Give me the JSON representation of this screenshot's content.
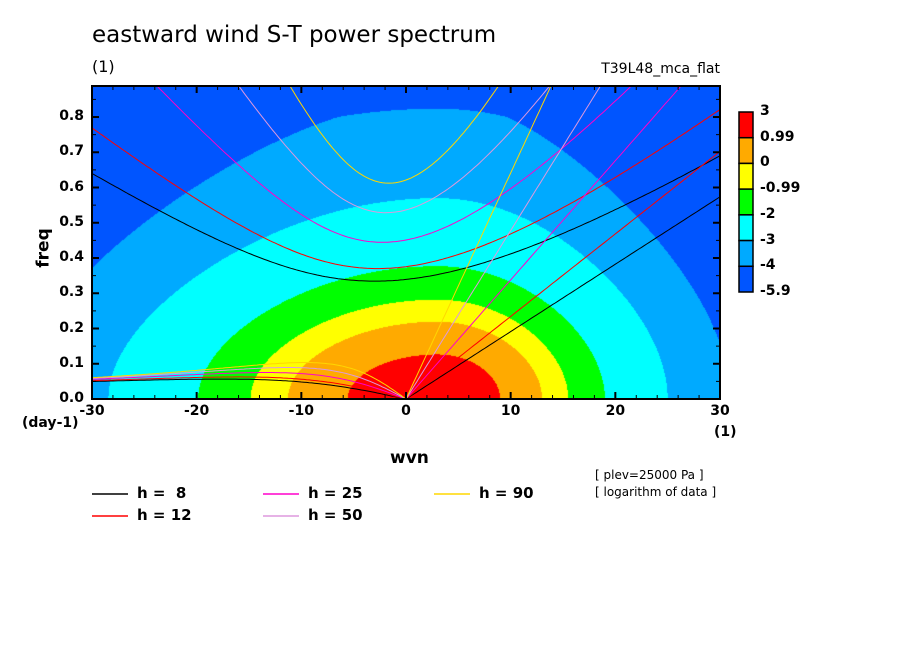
{
  "title": "eastward wind S-T power spectrum",
  "subtitle": "(1)",
  "run_label": "T39L48_mca_flat",
  "notes": [
    "[ plev=25000 Pa ]",
    "[ logarithm of data ]"
  ],
  "chart_data": {
    "type": "heatmap",
    "title": "eastward wind S-T power spectrum",
    "xlabel": "wvn",
    "ylabel": "freq",
    "x_unit": "(1)",
    "y_unit": "(day-1)",
    "xlim": [
      -30,
      30
    ],
    "ylim": [
      0,
      0.888
    ],
    "x_ticks": [
      "-30",
      "-20",
      "-10",
      "0",
      "10",
      "20",
      "30"
    ],
    "y_ticks": [
      "0.0",
      "0.1",
      "0.2",
      "0.3",
      "0.4",
      "0.5",
      "0.6",
      "0.7",
      "0.8"
    ],
    "colorbar": {
      "levels": [
        "3",
        "0.99",
        "0",
        "-0.99",
        "-2",
        "-3",
        "-4",
        "-5.9"
      ],
      "colors": [
        "#ff0000",
        "#ffaa00",
        "#ffff00",
        "#00ff00",
        "#00ffff",
        "#00aaff",
        "#0055ff"
      ]
    },
    "field_peak": {
      "wvn": 3,
      "freq": 0.0,
      "value": 3
    },
    "dispersion_curves": [
      {
        "name": "h =  8",
        "h": 8,
        "color": "#000000"
      },
      {
        "name": "h = 12",
        "h": 12,
        "color": "#ff0000"
      },
      {
        "name": "h = 25",
        "h": 25,
        "color": "#ff00cc"
      },
      {
        "name": "h = 50",
        "h": 50,
        "color": "#dd99dd"
      },
      {
        "name": "h = 90",
        "h": 90,
        "color": "#ffd700"
      }
    ]
  }
}
